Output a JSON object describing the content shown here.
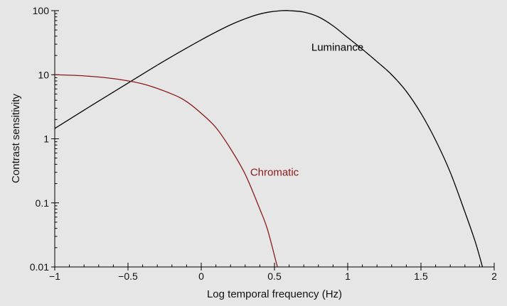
{
  "chart_data": {
    "type": "line",
    "title": "",
    "xlabel": "Log temporal frequency (Hz)",
    "ylabel": "Contrast sensitivity",
    "xlim": [
      -1,
      2
    ],
    "ylim": [
      0.01,
      100
    ],
    "y_scale": "log",
    "grid": false,
    "legend": "none",
    "background_color": "#e6e6e6",
    "x_ticks": [
      -1,
      -0.5,
      0,
      0.5,
      1,
      1.5,
      2
    ],
    "x_tick_labels": [
      "−1",
      "−0.5",
      "0",
      "0.5",
      "1",
      "1.5",
      "2"
    ],
    "y_ticks": [
      0.01,
      0.1,
      1,
      10,
      100
    ],
    "y_tick_labels": [
      "0.01",
      "0.1",
      "1",
      "10",
      "100"
    ],
    "series": [
      {
        "name": "Luminance",
        "color": "#000000",
        "label_at": [
          0.93,
          27
        ],
        "points": [
          [
            -1,
            1.45
          ],
          [
            -0.75,
            3.3
          ],
          [
            -0.5,
            7.4
          ],
          [
            -0.25,
            16.5
          ],
          [
            0,
            35
          ],
          [
            0.2,
            60
          ],
          [
            0.35,
            82
          ],
          [
            0.45,
            94
          ],
          [
            0.55,
            100
          ],
          [
            0.6,
            100
          ],
          [
            0.7,
            95
          ],
          [
            0.8,
            80
          ],
          [
            0.9,
            58
          ],
          [
            1.0,
            38
          ],
          [
            1.1,
            25
          ],
          [
            1.2,
            16
          ],
          [
            1.3,
            10
          ],
          [
            1.4,
            5.5
          ],
          [
            1.5,
            2.5
          ],
          [
            1.6,
            0.95
          ],
          [
            1.7,
            0.3
          ],
          [
            1.8,
            0.072
          ],
          [
            1.87,
            0.025
          ],
          [
            1.92,
            0.01
          ]
        ]
      },
      {
        "name": "Chromatic",
        "color": "#8b1a1a",
        "label_at": [
          0.5,
          0.3
        ],
        "points": [
          [
            -1,
            10
          ],
          [
            -0.8,
            9.6
          ],
          [
            -0.6,
            8.7
          ],
          [
            -0.4,
            7.2
          ],
          [
            -0.2,
            5.0
          ],
          [
            -0.1,
            3.8
          ],
          [
            0,
            2.5
          ],
          [
            0.1,
            1.5
          ],
          [
            0.2,
            0.7
          ],
          [
            0.3,
            0.28
          ],
          [
            0.4,
            0.08
          ],
          [
            0.45,
            0.04
          ],
          [
            0.5,
            0.015
          ],
          [
            0.52,
            0.01
          ]
        ]
      }
    ]
  }
}
